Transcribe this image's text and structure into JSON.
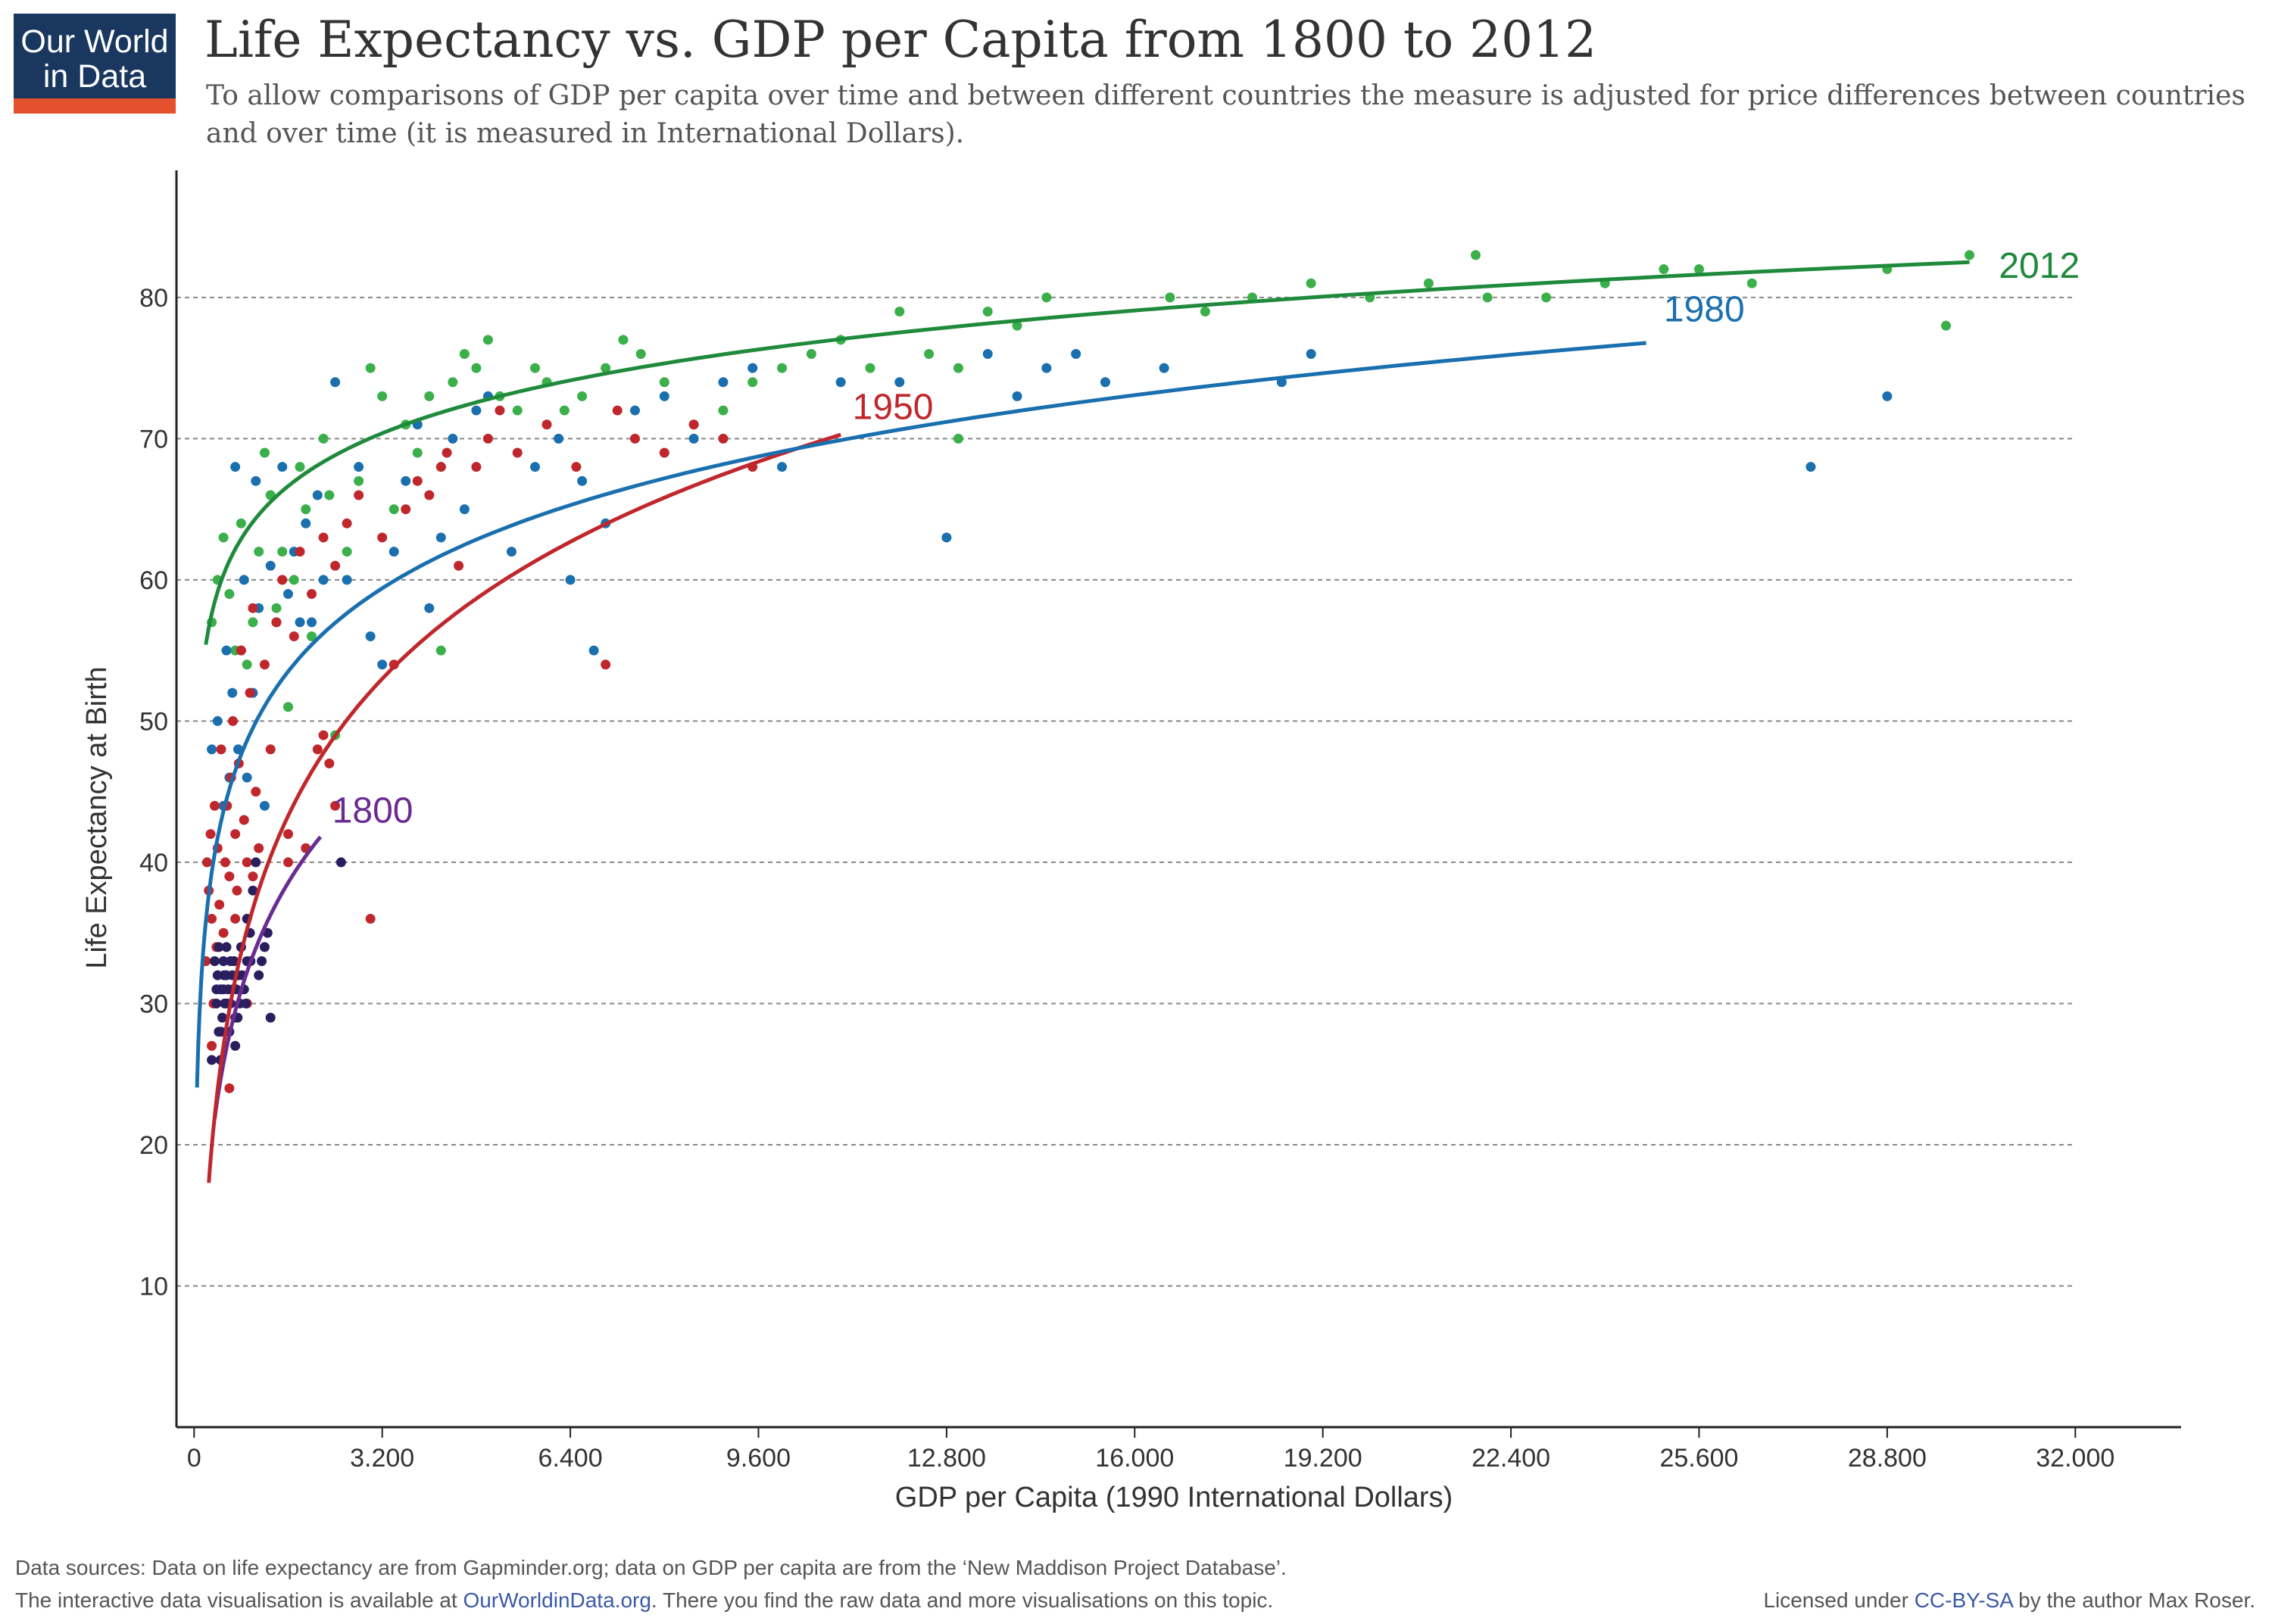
{
  "logo": {
    "line1": "Our World",
    "line2": "in Data"
  },
  "header": {
    "title": "Life Expectancy vs. GDP per Capita from 1800 to 2012",
    "subtitle": "To allow comparisons of GDP per capita over time and between different countries the measure is adjusted for price differences between countries and over time (it is measured in International Dollars)."
  },
  "footer": {
    "sources": "Data sources: Data on life expectancy are from Gapminder.org; data on GDP per capita are from the ‘New Maddison Project Database’.",
    "interactive_prefix": "The interactive data visualisation is available at ",
    "interactive_link": "OurWorldinData.org",
    "interactive_suffix": ". There you find the raw data and more visualisations on this topic.",
    "license_prefix": "Licensed under ",
    "license_link": "CC-BY-SA",
    "license_suffix": " by the author Max Roser."
  },
  "chart_data": {
    "type": "scatter",
    "title": "Life Expectancy vs. GDP per Capita from 1800 to 2012",
    "xlabel": "GDP per Capita (1990 International Dollars)",
    "ylabel": "Life Expectancy at Birth",
    "xlim": [
      -300,
      33800
    ],
    "ylim": [
      0,
      89
    ],
    "x_ticks": [
      0,
      3200,
      6400,
      9600,
      12800,
      16000,
      19200,
      22400,
      25600,
      28800,
      32000
    ],
    "x_tick_labels": [
      "0",
      "3.200",
      "6.400",
      "9.600",
      "12.800",
      "16.000",
      "19.200",
      "22.400",
      "25.600",
      "28.800",
      "32.000"
    ],
    "y_ticks": [
      10,
      20,
      30,
      40,
      50,
      60,
      70,
      80
    ],
    "y_tick_labels": [
      "10",
      "20",
      "30",
      "40",
      "50",
      "60",
      "70",
      "80"
    ],
    "grid": "horizontal dashed",
    "series": [
      {
        "name": "1800",
        "color": "#6a2c91",
        "point_color": "#2a1f5e",
        "fit": {
          "a": -42.6,
          "b": 11.0,
          "x_min": 350,
          "x_max": 2150
        },
        "label_x": 2350,
        "label_y": 42.8,
        "points": [
          [
            350,
            33
          ],
          [
            380,
            30
          ],
          [
            400,
            32
          ],
          [
            420,
            28
          ],
          [
            450,
            31
          ],
          [
            480,
            29
          ],
          [
            500,
            33
          ],
          [
            520,
            30
          ],
          [
            550,
            32
          ],
          [
            580,
            31
          ],
          [
            600,
            28
          ],
          [
            620,
            30
          ],
          [
            650,
            32
          ],
          [
            680,
            33
          ],
          [
            700,
            29
          ],
          [
            720,
            31
          ],
          [
            750,
            32
          ],
          [
            780,
            30
          ],
          [
            800,
            34
          ],
          [
            850,
            31
          ],
          [
            900,
            33
          ],
          [
            950,
            35
          ],
          [
            1000,
            38
          ],
          [
            1050,
            40
          ],
          [
            1100,
            32
          ],
          [
            1200,
            34
          ],
          [
            1300,
            29
          ],
          [
            300,
            26
          ],
          [
            450,
            26
          ],
          [
            700,
            27
          ],
          [
            500,
            31
          ],
          [
            550,
            34
          ],
          [
            900,
            36
          ],
          [
            2500,
            40
          ],
          [
            380,
            31
          ],
          [
            420,
            34
          ],
          [
            460,
            28
          ],
          [
            510,
            32
          ],
          [
            560,
            30
          ],
          [
            620,
            33
          ],
          [
            660,
            31
          ],
          [
            740,
            29
          ],
          [
            820,
            32
          ],
          [
            880,
            30
          ],
          [
            960,
            33
          ],
          [
            1150,
            33
          ],
          [
            1250,
            35
          ]
        ]
      },
      {
        "name": "1950",
        "color": "#c0272d",
        "point_color": "#c0272d",
        "fit": {
          "a": -60.0,
          "b": 14.0,
          "x_min": 250,
          "x_max": 11000
        },
        "label_x": 11200,
        "label_y": 71.4,
        "points": [
          [
            200,
            33
          ],
          [
            220,
            40
          ],
          [
            250,
            38
          ],
          [
            280,
            42
          ],
          [
            300,
            36
          ],
          [
            330,
            30
          ],
          [
            350,
            44
          ],
          [
            380,
            34
          ],
          [
            400,
            41
          ],
          [
            430,
            37
          ],
          [
            460,
            48
          ],
          [
            500,
            35
          ],
          [
            530,
            40
          ],
          [
            560,
            44
          ],
          [
            600,
            39
          ],
          [
            630,
            46
          ],
          [
            660,
            50
          ],
          [
            700,
            42
          ],
          [
            730,
            38
          ],
          [
            760,
            47
          ],
          [
            800,
            55
          ],
          [
            850,
            43
          ],
          [
            900,
            40
          ],
          [
            950,
            52
          ],
          [
            1000,
            58
          ],
          [
            1050,
            45
          ],
          [
            1100,
            41
          ],
          [
            1200,
            54
          ],
          [
            1300,
            48
          ],
          [
            1400,
            57
          ],
          [
            1500,
            60
          ],
          [
            1600,
            42
          ],
          [
            1700,
            56
          ],
          [
            1800,
            62
          ],
          [
            1900,
            41
          ],
          [
            2000,
            59
          ],
          [
            2100,
            48
          ],
          [
            2200,
            63
          ],
          [
            2300,
            47
          ],
          [
            2400,
            61
          ],
          [
            2600,
            64
          ],
          [
            2800,
            66
          ],
          [
            3000,
            36
          ],
          [
            3200,
            63
          ],
          [
            3400,
            54
          ],
          [
            3600,
            65
          ],
          [
            3800,
            67
          ],
          [
            4000,
            66
          ],
          [
            4300,
            69
          ],
          [
            4500,
            61
          ],
          [
            4800,
            68
          ],
          [
            5000,
            70
          ],
          [
            5500,
            69
          ],
          [
            6000,
            71
          ],
          [
            6500,
            68
          ],
          [
            7000,
            54
          ],
          [
            7200,
            72
          ],
          [
            7500,
            70
          ],
          [
            8000,
            69
          ],
          [
            8500,
            71
          ],
          [
            9000,
            70
          ],
          [
            9500,
            68
          ],
          [
            600,
            24
          ],
          [
            700,
            36
          ],
          [
            300,
            27
          ],
          [
            900,
            30
          ],
          [
            1000,
            39
          ],
          [
            1600,
            40
          ],
          [
            2400,
            44
          ],
          [
            2200,
            49
          ],
          [
            5200,
            72
          ],
          [
            4200,
            68
          ]
        ]
      },
      {
        "name": "1980",
        "color": "#1a6faf",
        "point_color": "#1a6faf",
        "fit": {
          "a": -9.2,
          "b": 8.5,
          "x_min": 50,
          "x_max": 24700
        },
        "label_x": 25000,
        "label_y": 78.3,
        "points": [
          [
            300,
            48
          ],
          [
            400,
            50
          ],
          [
            500,
            44
          ],
          [
            550,
            55
          ],
          [
            600,
            46
          ],
          [
            650,
            52
          ],
          [
            700,
            68
          ],
          [
            750,
            48
          ],
          [
            800,
            55
          ],
          [
            850,
            60
          ],
          [
            900,
            46
          ],
          [
            1000,
            52
          ],
          [
            1050,
            67
          ],
          [
            1100,
            58
          ],
          [
            1200,
            44
          ],
          [
            1300,
            61
          ],
          [
            1400,
            57
          ],
          [
            1500,
            68
          ],
          [
            1600,
            59
          ],
          [
            1700,
            62
          ],
          [
            1800,
            57
          ],
          [
            1900,
            64
          ],
          [
            2000,
            57
          ],
          [
            2100,
            66
          ],
          [
            2200,
            60
          ],
          [
            2400,
            74
          ],
          [
            2600,
            60
          ],
          [
            2800,
            68
          ],
          [
            3000,
            56
          ],
          [
            3200,
            54
          ],
          [
            3400,
            62
          ],
          [
            3600,
            67
          ],
          [
            3800,
            71
          ],
          [
            4000,
            58
          ],
          [
            4200,
            63
          ],
          [
            4400,
            70
          ],
          [
            4600,
            65
          ],
          [
            4800,
            72
          ],
          [
            5000,
            73
          ],
          [
            5400,
            62
          ],
          [
            5800,
            68
          ],
          [
            6200,
            70
          ],
          [
            6400,
            60
          ],
          [
            6600,
            67
          ],
          [
            7000,
            64
          ],
          [
            7500,
            72
          ],
          [
            8000,
            73
          ],
          [
            8500,
            70
          ],
          [
            9000,
            74
          ],
          [
            9500,
            75
          ],
          [
            10000,
            68
          ],
          [
            11000,
            74
          ],
          [
            12000,
            74
          ],
          [
            12800,
            63
          ],
          [
            13500,
            76
          ],
          [
            14000,
            73
          ],
          [
            14500,
            75
          ],
          [
            15000,
            76
          ],
          [
            15500,
            74
          ],
          [
            16500,
            75
          ],
          [
            18500,
            74
          ],
          [
            19000,
            76
          ],
          [
            27500,
            68
          ],
          [
            28800,
            73
          ],
          [
            6800,
            55
          ]
        ]
      },
      {
        "name": "2012",
        "color": "#1f8a3c",
        "point_color": "#3aaf4a",
        "fit": {
          "a": 26.8,
          "b": 5.4,
          "x_min": 200,
          "x_max": 30200
        },
        "label_x": 30700,
        "label_y": 81.4,
        "points": [
          [
            300,
            57
          ],
          [
            400,
            60
          ],
          [
            500,
            63
          ],
          [
            600,
            59
          ],
          [
            700,
            55
          ],
          [
            800,
            64
          ],
          [
            900,
            54
          ],
          [
            1000,
            57
          ],
          [
            1100,
            62
          ],
          [
            1200,
            69
          ],
          [
            1300,
            66
          ],
          [
            1400,
            58
          ],
          [
            1500,
            62
          ],
          [
            1600,
            51
          ],
          [
            1700,
            60
          ],
          [
            1800,
            68
          ],
          [
            1900,
            65
          ],
          [
            2000,
            56
          ],
          [
            2200,
            70
          ],
          [
            2300,
            66
          ],
          [
            2400,
            49
          ],
          [
            2600,
            62
          ],
          [
            2800,
            67
          ],
          [
            3000,
            75
          ],
          [
            3200,
            73
          ],
          [
            3400,
            65
          ],
          [
            3600,
            71
          ],
          [
            3800,
            69
          ],
          [
            4000,
            73
          ],
          [
            4200,
            68
          ],
          [
            4400,
            74
          ],
          [
            4600,
            76
          ],
          [
            4800,
            75
          ],
          [
            5000,
            77
          ],
          [
            5200,
            73
          ],
          [
            5500,
            72
          ],
          [
            5800,
            75
          ],
          [
            6000,
            74
          ],
          [
            6300,
            72
          ],
          [
            6600,
            73
          ],
          [
            7000,
            75
          ],
          [
            7300,
            77
          ],
          [
            7600,
            76
          ],
          [
            8000,
            74
          ],
          [
            8500,
            71
          ],
          [
            9000,
            72
          ],
          [
            9500,
            74
          ],
          [
            10000,
            75
          ],
          [
            10500,
            76
          ],
          [
            11000,
            77
          ],
          [
            11500,
            75
          ],
          [
            12000,
            79
          ],
          [
            12500,
            76
          ],
          [
            13000,
            75
          ],
          [
            13500,
            79
          ],
          [
            14000,
            78
          ],
          [
            14500,
            80
          ],
          [
            16600,
            80
          ],
          [
            17200,
            79
          ],
          [
            18000,
            80
          ],
          [
            19000,
            81
          ],
          [
            20000,
            80
          ],
          [
            21000,
            81
          ],
          [
            21800,
            83
          ],
          [
            22000,
            80
          ],
          [
            23000,
            80
          ],
          [
            24000,
            81
          ],
          [
            25000,
            82
          ],
          [
            25600,
            82
          ],
          [
            26500,
            81
          ],
          [
            28800,
            82
          ],
          [
            30200,
            83
          ],
          [
            29800,
            78
          ],
          [
            4200,
            55
          ],
          [
            13000,
            70
          ]
        ]
      }
    ]
  }
}
